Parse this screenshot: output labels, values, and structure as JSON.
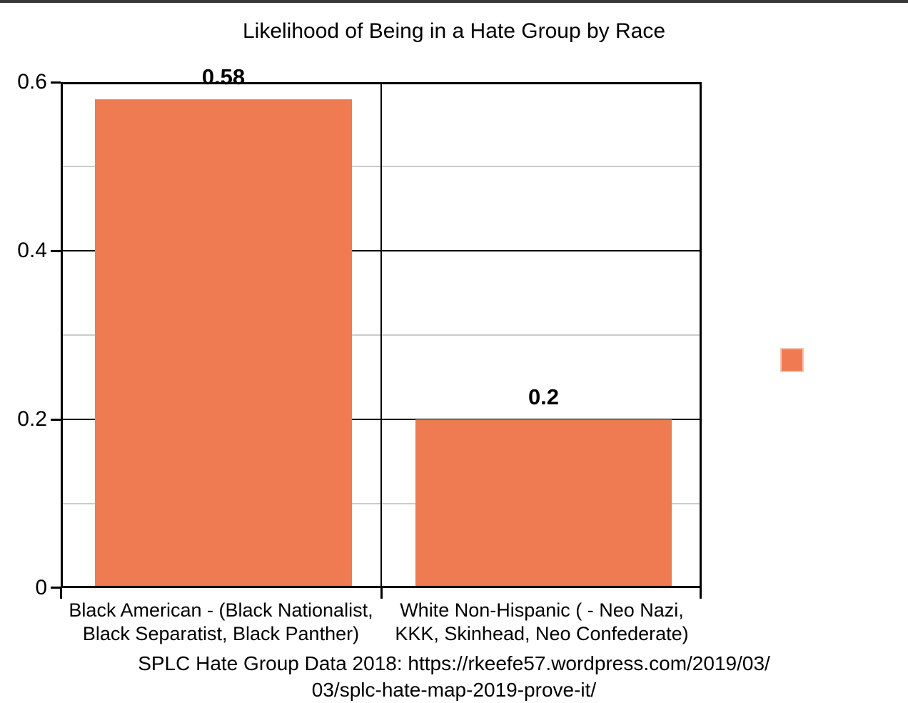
{
  "window": {
    "top_strip_color": "#383838"
  },
  "chart_data": {
    "type": "bar",
    "title": "Likelihood of Being in a Hate Group by Race",
    "categories": [
      "Black American - (Black Nationalist, Black Separatist, Black Panther)",
      "White Non-Hispanic ( - Neo Nazi, KKK, Skinhead, Neo Confederate)"
    ],
    "values": [
      0.58,
      0.2
    ],
    "value_labels": [
      "0.58",
      "0.2"
    ],
    "xlabel": "",
    "ylabel": "",
    "ylim": [
      0,
      0.6
    ],
    "y_ticks": [
      "0.6",
      "0.4",
      "0.2",
      "0"
    ],
    "y_tick_values": [
      0.6,
      0.4,
      0.2,
      0
    ],
    "minor_gridline_values": [
      0.5,
      0.3,
      0.1
    ],
    "grid": "on",
    "legend_position": "right",
    "series_color": "#EE7B51",
    "caption": "SPLC Hate Group Data 2018: https://rkeefe57.wordpress.com/2019/03/03/splc-hate-map-2019-prove-it/"
  },
  "category_label_lines": [
    {
      "line1": "Black American - (Black Nationalist,",
      "line2": "Black Separatist, Black Panther)"
    },
    {
      "line1": "White Non-Hispanic ( - Neo Nazi,",
      "line2": "KKK, Skinhead, Neo Confederate)"
    }
  ],
  "caption_lines": {
    "line1": "SPLC Hate Group Data 2018: https://rkeefe57.wordpress.com/2019/03/",
    "line2": "03/splc-hate-map-2019-prove-it/"
  },
  "legend": {
    "swatch_color": "#EE7B51"
  }
}
